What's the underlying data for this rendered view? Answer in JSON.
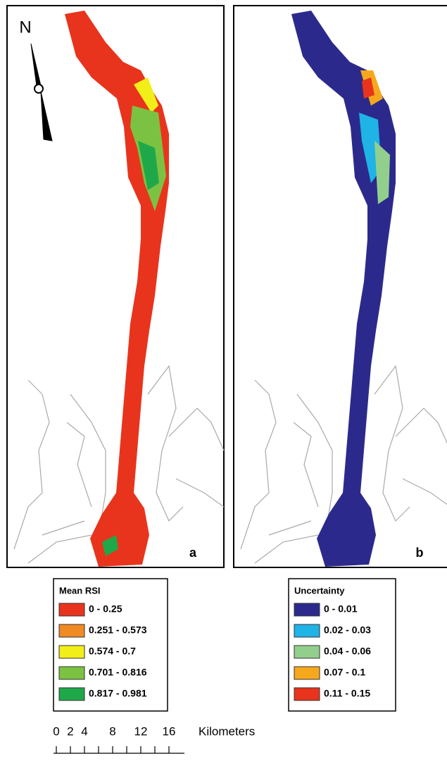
{
  "north": "N",
  "panels": [
    {
      "label": "a",
      "palette": [
        "#e8341c",
        "#f08a24",
        "#f2ee1a",
        "#7cc242",
        "#1fa84a"
      ],
      "legend": {
        "title": "Mean RSI",
        "items": [
          {
            "label": "0 - 0.25",
            "color": "#e8341c"
          },
          {
            "label": "0.251 - 0.573",
            "color": "#f08a24"
          },
          {
            "label": "0.574 - 0.7",
            "color": "#f2ee1a"
          },
          {
            "label": "0.701 - 0.816",
            "color": "#7cc242"
          },
          {
            "label": "0.817 - 0.981",
            "color": "#1fa84a"
          }
        ]
      }
    },
    {
      "label": "b",
      "palette": [
        "#2b2a8c",
        "#1fb3e6",
        "#93cf8c",
        "#f6a81c",
        "#e8341c"
      ],
      "legend": {
        "title": "Uncertainty",
        "items": [
          {
            "label": "0 - 0.01",
            "color": "#2b2a8c"
          },
          {
            "label": "0.02 - 0.03",
            "color": "#1fb3e6"
          },
          {
            "label": "0.04 - 0.06",
            "color": "#93cf8c"
          },
          {
            "label": "0.07 - 0.1",
            "color": "#f6a81c"
          },
          {
            "label": "0.11 - 0.15",
            "color": "#e8341c"
          }
        ]
      }
    }
  ],
  "scale": {
    "labels": [
      "0",
      "2",
      "4",
      "8",
      "12",
      "16"
    ],
    "unit": "Kilometers"
  }
}
